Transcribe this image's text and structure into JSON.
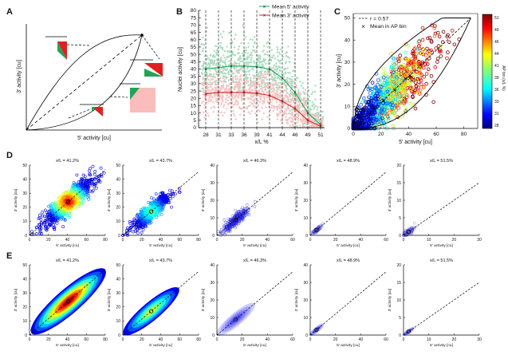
{
  "panel_letters": {
    "a": "A",
    "b": "B",
    "c": "C",
    "d": "D",
    "e": "E"
  },
  "chart_data": [
    {
      "panel": "A",
      "type": "diagram",
      "xlabel": "5' activity [cu]",
      "ylabel": "3' activity [cu]",
      "description_marks": [
        "diagonal",
        "upper-bound-curve",
        "lower-bound-curve"
      ]
    },
    {
      "panel": "B",
      "type": "line",
      "title": "",
      "xlabel": "x/L %",
      "ylabel": "Nuclei activity [cu]",
      "ylim": [
        0,
        80
      ],
      "yticks": [
        0,
        5,
        10,
        15,
        20,
        25,
        30,
        35,
        40,
        45,
        50,
        55,
        60,
        65,
        70,
        75,
        80
      ],
      "x_ticklabels": [
        "28",
        "31",
        "33",
        "36",
        "39",
        "41",
        "44",
        "46",
        "49",
        "51"
      ],
      "series": [
        {
          "name": "Mean 5' activity",
          "color": "#22a355",
          "values": [
            40,
            41,
            42,
            42,
            41.5,
            40,
            34,
            24,
            10,
            2
          ]
        },
        {
          "name": "Mean 3' activity",
          "color": "#e02020",
          "values": [
            23,
            24,
            24,
            24,
            23.5,
            22,
            18,
            13,
            5,
            1
          ]
        }
      ]
    },
    {
      "panel": "C",
      "type": "scatter",
      "xlabel": "5' activity [cu]",
      "ylabel": "3' activity [cu]",
      "xlim": [
        0,
        90
      ],
      "ylim": [
        0,
        52
      ],
      "xticks": [
        0,
        20,
        40,
        60,
        80
      ],
      "yticks": [
        0,
        10,
        20,
        30,
        40,
        50
      ],
      "legend": [
        "r = 0.57",
        "Mean in AP bin"
      ],
      "colorbar_label": "AP bin (x/L %)",
      "colorbar_ticks": [
        "51",
        "49",
        "46",
        "44",
        "41",
        "39",
        "36",
        "33",
        "31",
        "28"
      ],
      "ap_bin_means": [
        [
          41,
          24
        ],
        [
          38,
          22.5
        ],
        [
          30,
          17.5
        ],
        [
          22,
          12.5
        ],
        [
          12,
          7
        ],
        [
          4,
          2
        ]
      ]
    },
    {
      "panel": "D",
      "type": "scatter",
      "xlabel": "5' activity [cu]",
      "ylabel": "3' activity [cu]",
      "subplots": [
        {
          "title": "x/L = 41.2%",
          "xlim": [
            0,
            80
          ],
          "ylim": [
            0,
            50
          ],
          "xticks": [
            "0",
            "20",
            "40",
            "60",
            "80"
          ],
          "yticks": [
            "0",
            "10",
            "20",
            "30",
            "40",
            "50"
          ],
          "mean": [
            41,
            24
          ],
          "density": "high"
        },
        {
          "title": "x/L = 43.7%",
          "xlim": [
            0,
            80
          ],
          "ylim": [
            0,
            50
          ],
          "xticks": [
            "0",
            "20",
            "40",
            "60",
            "80"
          ],
          "yticks": [
            "0",
            "10",
            "20",
            "30",
            "40",
            "50"
          ],
          "mean": [
            30,
            17
          ],
          "density": "medium"
        },
        {
          "title": "x/L = 46.3%",
          "xlim": [
            0,
            60
          ],
          "ylim": [
            0,
            40
          ],
          "xticks": [
            "0",
            "20",
            "40",
            "60"
          ],
          "yticks": [
            "0",
            "10",
            "20",
            "30",
            "40"
          ],
          "mean": [
            15,
            9
          ],
          "density": "low"
        },
        {
          "title": "x/L = 48.9%",
          "xlim": [
            0,
            60
          ],
          "ylim": [
            0,
            40
          ],
          "xticks": [
            "0",
            "20",
            "40",
            "60"
          ],
          "yticks": [
            "0",
            "10",
            "20",
            "30",
            "40"
          ],
          "mean": [
            5,
            3
          ],
          "density": "sparse"
        },
        {
          "title": "x/L = 51.5%",
          "xlim": [
            0,
            30
          ],
          "ylim": [
            0,
            20
          ],
          "xticks": [
            "0",
            "10",
            "20",
            "30"
          ],
          "yticks": [
            "0",
            "5",
            "10",
            "15",
            "20"
          ],
          "mean": [
            2,
            1
          ],
          "density": "sparse"
        }
      ]
    },
    {
      "panel": "E",
      "type": "heatmap",
      "xlabel": "5' activity [cu]",
      "ylabel": "3' activity [cu]",
      "subplots": [
        {
          "title": "x/L = 41.2%",
          "xlim": [
            0,
            80
          ],
          "ylim": [
            0,
            50
          ],
          "xticks": [
            "0",
            "20",
            "40",
            "60",
            "80"
          ],
          "yticks": [
            "0",
            "10",
            "20",
            "30",
            "40",
            "50"
          ],
          "mean": [
            41,
            24
          ],
          "density": "high"
        },
        {
          "title": "x/L = 43.7%",
          "xlim": [
            0,
            80
          ],
          "ylim": [
            0,
            50
          ],
          "xticks": [
            "0",
            "20",
            "40",
            "60",
            "80"
          ],
          "yticks": [
            "0",
            "10",
            "20",
            "30",
            "40",
            "50"
          ],
          "mean": [
            30,
            17
          ],
          "density": "medium"
        },
        {
          "title": "x/L = 46.3%",
          "xlim": [
            0,
            60
          ],
          "ylim": [
            0,
            40
          ],
          "xticks": [
            "0",
            "20",
            "40",
            "60"
          ],
          "yticks": [
            "0",
            "10",
            "20",
            "30",
            "40"
          ],
          "mean": [
            15,
            9
          ],
          "density": "low"
        },
        {
          "title": "x/L = 48.9%",
          "xlim": [
            0,
            60
          ],
          "ylim": [
            0,
            40
          ],
          "xticks": [
            "0",
            "20",
            "40",
            "60"
          ],
          "yticks": [
            "0",
            "10",
            "20",
            "30",
            "40"
          ],
          "mean": [
            5,
            3
          ],
          "density": "sparse"
        },
        {
          "title": "x/L = 51.5%",
          "xlim": [
            0,
            30
          ],
          "ylim": [
            0,
            20
          ],
          "xticks": [
            "0",
            "10",
            "20",
            "30"
          ],
          "yticks": [
            "0",
            "5",
            "10",
            "15",
            "20"
          ],
          "mean": [
            2,
            1
          ],
          "density": "sparse"
        }
      ]
    }
  ]
}
